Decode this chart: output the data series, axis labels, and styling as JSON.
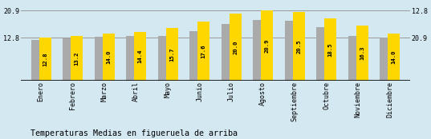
{
  "categories": [
    "Enero",
    "Febrero",
    "Marzo",
    "Abril",
    "Mayo",
    "Junio",
    "Julio",
    "Agosto",
    "Septiembre",
    "Octubre",
    "Noviembre",
    "Diciembre"
  ],
  "values": [
    12.8,
    13.2,
    14.0,
    14.4,
    15.7,
    17.6,
    20.0,
    20.9,
    20.5,
    18.5,
    16.3,
    14.0
  ],
  "gray_values": [
    12.2,
    12.5,
    13.0,
    13.2,
    13.2,
    14.8,
    16.8,
    18.0,
    17.8,
    15.8,
    13.2,
    12.8
  ],
  "bar_color_yellow": "#FFD700",
  "bar_color_gray": "#AAAAAA",
  "background_color": "#D4E8F2",
  "title": "Temperaturas Medias en figueruela de arriba",
  "yticks": [
    12.8,
    20.9
  ],
  "hline_color": "#999999",
  "yellow_bar_width": 0.38,
  "gray_bar_width": 0.28,
  "title_fontsize": 7.2,
  "tick_fontsize": 6.0,
  "value_fontsize": 5.2,
  "right_ytick_labels": [
    "20.9",
    "12.8"
  ],
  "ymax": 23.0
}
